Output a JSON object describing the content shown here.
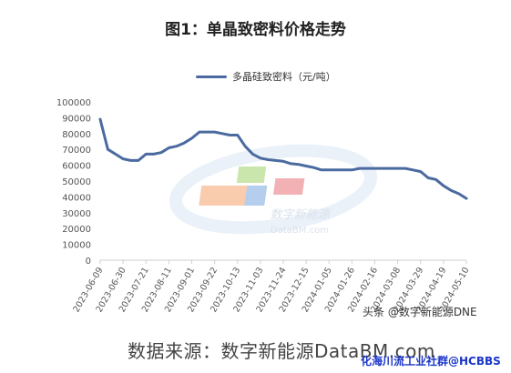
{
  "title": "图1：单晶致密料价格走势",
  "source": "数据来源：数字新能源DataBM.com",
  "watermarks": {
    "toutiao": "头条 @数字新能源DNE",
    "hcbbs": "化海川流工业社群@HCBBS",
    "logo_cn": "数字新能源",
    "logo_en": "DataBM.com"
  },
  "colors": {
    "line": "#4a6aa0",
    "axis": "#cfcfcf",
    "logo_orange": "#f4a36a",
    "logo_green": "#9fd36a",
    "logo_blue": "#7aa7e0",
    "logo_red": "#e8757a"
  },
  "chart_data": {
    "type": "line",
    "title": "图1：单晶致密料价格走势",
    "ylim": [
      0,
      100000
    ],
    "yticks": [
      "0",
      "10000",
      "20000",
      "30000",
      "40000",
      "50000",
      "60000",
      "70000",
      "80000",
      "90000",
      "100000"
    ],
    "xtick_labels": [
      "2023-06-09",
      "2023-06-30",
      "2023-07-21",
      "2023-08-11",
      "2023-09-01",
      "2023-09-22",
      "2023-10-13",
      "2023-11-03",
      "2023-11-24",
      "2023-12-15",
      "2024-01-05",
      "2024-01-26",
      "2024-02-16",
      "2024-03-08",
      "2024-03-29",
      "2024-04-19",
      "2024-05-10"
    ],
    "legend_position": "top",
    "series": [
      {
        "name": "多晶硅致密料（元/吨）",
        "x": [
          "2023-06-09",
          "2023-06-16",
          "2023-06-23",
          "2023-06-30",
          "2023-07-07",
          "2023-07-14",
          "2023-07-21",
          "2023-07-28",
          "2023-08-04",
          "2023-08-11",
          "2023-08-18",
          "2023-08-25",
          "2023-09-01",
          "2023-09-08",
          "2023-09-15",
          "2023-09-22",
          "2023-09-29",
          "2023-10-06",
          "2023-10-13",
          "2023-10-20",
          "2023-10-27",
          "2023-11-03",
          "2023-11-10",
          "2023-11-17",
          "2023-11-24",
          "2023-12-01",
          "2023-12-08",
          "2023-12-15",
          "2023-12-22",
          "2023-12-29",
          "2024-01-05",
          "2024-01-12",
          "2024-01-19",
          "2024-01-26",
          "2024-02-02",
          "2024-02-09",
          "2024-02-16",
          "2024-02-23",
          "2024-03-01",
          "2024-03-08",
          "2024-03-15",
          "2024-03-22",
          "2024-03-29",
          "2024-04-05",
          "2024-04-12",
          "2024-04-19",
          "2024-04-26",
          "2024-05-03",
          "2024-05-10"
        ],
        "values": [
          89000,
          70000,
          67000,
          64000,
          63000,
          63000,
          67000,
          67000,
          68000,
          71000,
          72000,
          74000,
          77000,
          81000,
          81000,
          81000,
          80000,
          79000,
          79000,
          72000,
          67000,
          64500,
          63500,
          63000,
          62500,
          61000,
          60500,
          59500,
          58500,
          57000,
          57000,
          57000,
          57000,
          57000,
          58000,
          58000,
          58000,
          58000,
          58000,
          58000,
          58000,
          57000,
          56000,
          52000,
          51000,
          47000,
          44000,
          42000,
          39000
        ]
      }
    ]
  }
}
